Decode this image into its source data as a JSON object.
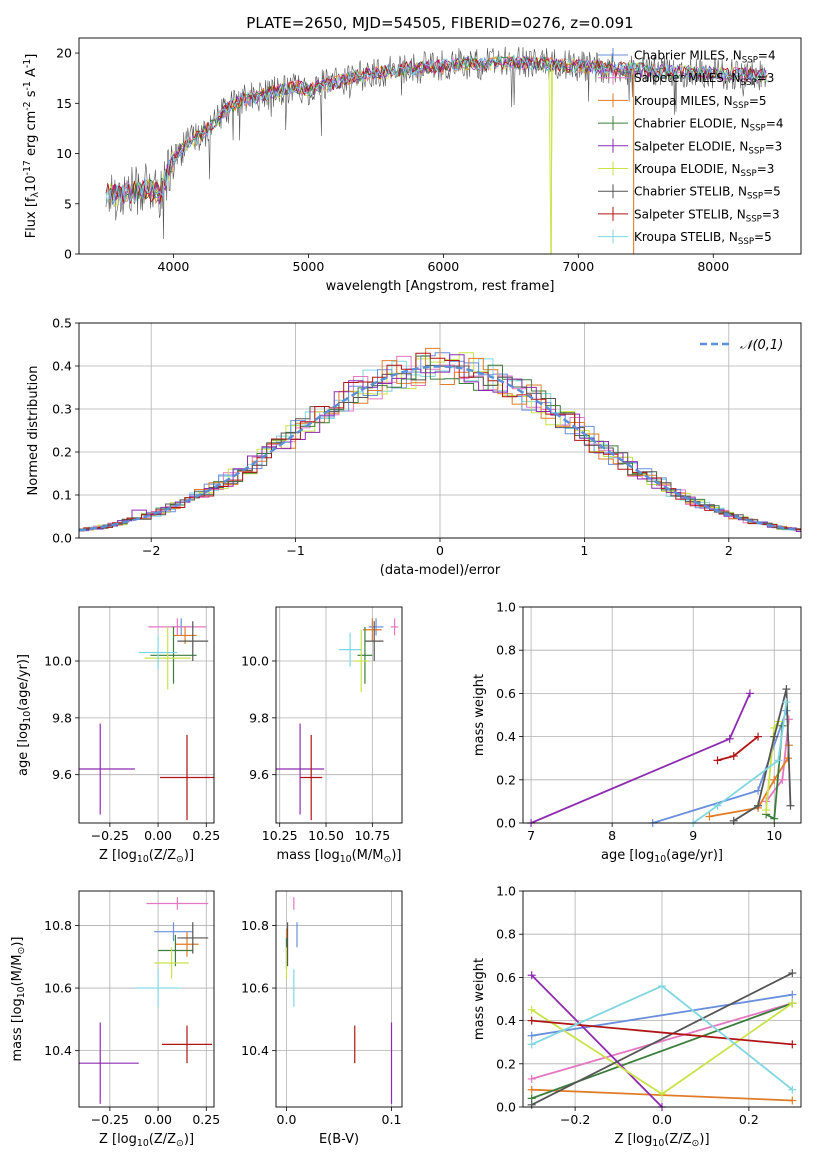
{
  "figure": {
    "title": "PLATE=2650, MJD=54505, FIBERID=0276, z=0.091"
  },
  "colors": {
    "chabrier_miles": "#6a8fdc",
    "salpeter_miles": "#e377c2",
    "kroupa_miles": "#e07c28",
    "chabrier_elodie": "#3c7d3c",
    "salpeter_elodie": "#8e2bb0",
    "kroupa_elodie": "#c9e34a",
    "chabrier_stelib": "#555555",
    "salpeter_stelib": "#b01515",
    "kroupa_stelib": "#80d6e0",
    "normal": "#5b8fd6",
    "grid": "#b0b0b0"
  },
  "chart_data": [
    {
      "id": "spectrum",
      "type": "line",
      "title": "PLATE=2650, MJD=54505, FIBERID=0276, z=0.091",
      "xlabel": "wavelength [Angstrom, rest frame]",
      "ylabel": "Flux [f$_\\lambda$10$^{-17}$ erg cm$^{-2}$ s$^{-1}$ A$^{-1}$]",
      "xlim": [
        3300,
        8650
      ],
      "ylim": [
        0,
        21.5
      ],
      "xticks": [
        4000,
        5000,
        6000,
        7000,
        8000
      ],
      "yticks": [
        0,
        5,
        10,
        15,
        20
      ],
      "grid": false,
      "legend_position": "top-right",
      "legend": [
        {
          "label": "Chabrier MILES, N$_{SSP}$=4",
          "color": "#6a8fdc"
        },
        {
          "label": "Salpeter MILES, N$_{SSP}$=3",
          "color": "#e377c2"
        },
        {
          "label": "Kroupa MILES, N$_{SSP}$=5",
          "color": "#e07c28"
        },
        {
          "label": "Chabrier ELODIE, N$_{SSP}$=4",
          "color": "#3c7d3c"
        },
        {
          "label": "Salpeter ELODIE, N$_{SSP}$=3",
          "color": "#8e2bb0"
        },
        {
          "label": "Kroupa ELODIE, N$_{SSP}$=3",
          "color": "#c9e34a"
        },
        {
          "label": "Chabrier STELIB, N$_{SSP}$=5",
          "color": "#555555"
        },
        {
          "label": "Salpeter STELIB, N$_{SSP}$=3",
          "color": "#b01515"
        },
        {
          "label": "Kroupa STELIB, N$_{SSP}$=5",
          "color": "#80d6e0"
        }
      ],
      "continuum": {
        "x": [
          3500,
          3600,
          3700,
          3800,
          3900,
          4000,
          4100,
          4200,
          4300,
          4400,
          4500,
          4600,
          4700,
          4800,
          4900,
          5000,
          5100,
          5200,
          5300,
          5400,
          5500,
          5600,
          5700,
          5800,
          5900,
          6000,
          6100,
          6200,
          6300,
          6400,
          6500,
          6600,
          6700,
          6800,
          6900,
          7000,
          7100,
          7200,
          7300,
          7400,
          7500,
          7600,
          7700,
          7800,
          7900,
          8000,
          8100,
          8200,
          8300,
          8400
        ],
        "y": [
          6.0,
          5.8,
          6.2,
          6.5,
          6.0,
          9.5,
          11.0,
          11.8,
          13.0,
          14.5,
          15.3,
          15.6,
          15.9,
          16.3,
          16.7,
          16.3,
          16.8,
          17.0,
          17.5,
          17.8,
          18.0,
          18.2,
          18.4,
          18.5,
          18.6,
          18.7,
          18.9,
          19.0,
          18.9,
          19.0,
          19.1,
          19.0,
          19.0,
          18.9,
          18.8,
          18.7,
          18.6,
          18.5,
          18.4,
          18.4,
          18.3,
          18.2,
          18.2,
          18.1,
          18.0,
          18.0,
          17.9,
          17.9,
          17.8,
          17.8
        ]
      },
      "spikes": [
        {
          "x": 6800,
          "y": 0.0
        },
        {
          "x": 7410,
          "y": 0.0
        }
      ]
    },
    {
      "id": "residuals",
      "type": "line",
      "xlabel": "(data-model)/error",
      "ylabel": "Normed distribution",
      "xlim": [
        -2.5,
        2.5
      ],
      "ylim": [
        0,
        0.5
      ],
      "xticks": [
        -2,
        -1,
        0,
        1,
        2
      ],
      "yticks": [
        0.0,
        0.1,
        0.2,
        0.3,
        0.4,
        0.5
      ],
      "grid": true,
      "legend_position": "top-right",
      "legend": [
        {
          "label": "$\\mathcal{N}(0,1)$",
          "color": "#5b8fd6"
        }
      ],
      "normal": {
        "mean": 0,
        "sigma": 1
      }
    },
    {
      "id": "age_vs_Z",
      "type": "scatter",
      "xlabel": "Z [log$_{10}$(Z/Z$_\\odot$)]",
      "ylabel": "age  [log$_{10}$(age/yr)]",
      "xlim": [
        -0.41,
        0.29
      ],
      "ylim": [
        9.43,
        10.19
      ],
      "xticks": [
        -0.25,
        0.0,
        0.25
      ],
      "xtick_labels": [
        "−0.25",
        "0.00",
        "0.25"
      ],
      "yticks": [
        9.6,
        9.8,
        10.0
      ],
      "grid": true,
      "points": [
        {
          "model": "chabrier_miles",
          "x": 0.12,
          "y": 10.12,
          "xerr": 0.05,
          "yerr": 0.03
        },
        {
          "model": "salpeter_miles",
          "x": 0.1,
          "y": 10.12,
          "xerr": 0.15,
          "yerr": 0.03
        },
        {
          "model": "kroupa_miles",
          "x": 0.14,
          "y": 10.09,
          "xerr": 0.06,
          "yerr": 0.03
        },
        {
          "model": "chabrier_elodie",
          "x": 0.08,
          "y": 10.02,
          "xerr": 0.12,
          "yerr": 0.1
        },
        {
          "model": "salpeter_elodie",
          "x": -0.3,
          "y": 9.62,
          "xerr": 0.18,
          "yerr": 0.16
        },
        {
          "model": "kroupa_elodie",
          "x": 0.05,
          "y": 10.01,
          "xerr": 0.12,
          "yerr": 0.11
        },
        {
          "model": "chabrier_stelib",
          "x": 0.18,
          "y": 10.07,
          "xerr": 0.08,
          "yerr": 0.07
        },
        {
          "model": "salpeter_stelib",
          "x": 0.15,
          "y": 9.59,
          "xerr": 0.14,
          "yerr": 0.15
        },
        {
          "model": "kroupa_stelib",
          "x": 0.0,
          "y": 10.03,
          "xerr": 0.1,
          "yerr": 0.06
        }
      ]
    },
    {
      "id": "age_vs_mass",
      "type": "scatter",
      "xlabel": "mass [log$_{10}$(M/M$_\\odot$)]",
      "ylabel": "",
      "xlim": [
        10.23,
        10.91
      ],
      "ylim": [
        9.43,
        10.19
      ],
      "xticks": [
        10.25,
        10.5,
        10.75
      ],
      "xtick_labels": [
        "10.25",
        "10.50",
        "10.75"
      ],
      "yticks": [
        9.6,
        9.8,
        10.0
      ],
      "grid": true,
      "points": [
        {
          "model": "chabrier_miles",
          "x": 10.77,
          "y": 10.12,
          "xerr": 0.04,
          "yerr": 0.03
        },
        {
          "model": "salpeter_miles",
          "x": 10.87,
          "y": 10.12,
          "xerr": 0.02,
          "yerr": 0.03
        },
        {
          "model": "kroupa_miles",
          "x": 10.75,
          "y": 10.11,
          "xerr": 0.05,
          "yerr": 0.04
        },
        {
          "model": "chabrier_elodie",
          "x": 10.71,
          "y": 10.02,
          "xerr": 0.04,
          "yerr": 0.1
        },
        {
          "model": "salpeter_elodie",
          "x": 10.36,
          "y": 9.62,
          "xerr": 0.13,
          "yerr": 0.16
        },
        {
          "model": "kroupa_elodie",
          "x": 10.69,
          "y": 10.0,
          "xerr": 0.04,
          "yerr": 0.11
        },
        {
          "model": "chabrier_stelib",
          "x": 10.76,
          "y": 10.07,
          "xerr": 0.05,
          "yerr": 0.07
        },
        {
          "model": "salpeter_stelib",
          "x": 10.42,
          "y": 9.59,
          "xerr": 0.06,
          "yerr": 0.15
        },
        {
          "model": "kroupa_stelib",
          "x": 10.63,
          "y": 10.04,
          "xerr": 0.06,
          "yerr": 0.06
        }
      ]
    },
    {
      "id": "weight_vs_age",
      "type": "line",
      "xlabel": "age  [log$_{10}$(age/yr)]",
      "ylabel": "mass weight",
      "xlim": [
        6.9,
        10.33
      ],
      "ylim": [
        0,
        1.0
      ],
      "xticks": [
        7,
        8,
        9,
        10
      ],
      "yticks": [
        0.0,
        0.2,
        0.4,
        0.6,
        0.8,
        1.0
      ],
      "grid": true,
      "series": [
        {
          "model": "chabrier_miles",
          "x": [
            8.5,
            9.8,
            10.15
          ],
          "y": [
            0.0,
            0.15,
            0.52
          ]
        },
        {
          "model": "salpeter_miles",
          "x": [
            9.9,
            10.1,
            10.18
          ],
          "y": [
            0.1,
            0.2,
            0.48
          ]
        },
        {
          "model": "kroupa_miles",
          "x": [
            9.2,
            9.8,
            10.0,
            10.17,
            10.18
          ],
          "y": [
            0.03,
            0.07,
            0.2,
            0.3,
            0.36
          ]
        },
        {
          "model": "chabrier_elodie",
          "x": [
            9.9,
            10.0,
            10.1
          ],
          "y": [
            0.04,
            0.02,
            0.45
          ]
        },
        {
          "model": "salpeter_elodie",
          "x": [
            7.0,
            9.45,
            9.7
          ],
          "y": [
            0.0,
            0.39,
            0.6
          ]
        },
        {
          "model": "kroupa_elodie",
          "x": [
            9.9,
            10.0,
            10.05
          ],
          "y": [
            0.06,
            0.44,
            0.47
          ]
        },
        {
          "model": "chabrier_stelib",
          "x": [
            9.5,
            9.8,
            10.0,
            10.15,
            10.2
          ],
          "y": [
            0.01,
            0.08,
            0.4,
            0.62,
            0.08
          ]
        },
        {
          "model": "salpeter_stelib",
          "x": [
            9.3,
            9.5,
            9.8
          ],
          "y": [
            0.29,
            0.31,
            0.4
          ]
        },
        {
          "model": "kroupa_stelib",
          "x": [
            9.0,
            9.3,
            10.05,
            10.15
          ],
          "y": [
            0.0,
            0.08,
            0.29,
            0.56
          ]
        }
      ]
    },
    {
      "id": "mass_vs_Z",
      "type": "scatter",
      "xlabel": "Z [log$_{10}$(Z/Z$_\\odot$)]",
      "ylabel": "mass [log$_{10}$(M/M$_\\odot$)]",
      "xlim": [
        -0.41,
        0.29
      ],
      "ylim": [
        10.22,
        10.91
      ],
      "xticks": [
        -0.25,
        0.0,
        0.25
      ],
      "xtick_labels": [
        "−0.25",
        "0.00",
        "0.25"
      ],
      "yticks": [
        10.4,
        10.6,
        10.8
      ],
      "grid": true,
      "points": [
        {
          "model": "chabrier_miles",
          "x": 0.08,
          "y": 10.78,
          "xerr": 0.1,
          "yerr": 0.03
        },
        {
          "model": "salpeter_miles",
          "x": 0.1,
          "y": 10.87,
          "xerr": 0.16,
          "yerr": 0.02
        },
        {
          "model": "kroupa_miles",
          "x": 0.15,
          "y": 10.74,
          "xerr": 0.06,
          "yerr": 0.04
        },
        {
          "model": "chabrier_elodie",
          "x": 0.09,
          "y": 10.72,
          "xerr": 0.09,
          "yerr": 0.05
        },
        {
          "model": "salpeter_elodie",
          "x": -0.3,
          "y": 10.36,
          "xerr": 0.2,
          "yerr": 0.13
        },
        {
          "model": "kroupa_elodie",
          "x": 0.07,
          "y": 10.68,
          "xerr": 0.09,
          "yerr": 0.05
        },
        {
          "model": "chabrier_stelib",
          "x": 0.18,
          "y": 10.76,
          "xerr": 0.08,
          "yerr": 0.05
        },
        {
          "model": "salpeter_stelib",
          "x": 0.15,
          "y": 10.42,
          "xerr": 0.13,
          "yerr": 0.06
        },
        {
          "model": "kroupa_stelib",
          "x": 0.0,
          "y": 10.6,
          "xerr": 0.12,
          "yerr": 0.06
        }
      ]
    },
    {
      "id": "mass_vs_ebv",
      "type": "scatter",
      "xlabel": "E(B-V)",
      "ylabel": "",
      "xlim": [
        -0.01,
        0.11
      ],
      "ylim": [
        10.22,
        10.91
      ],
      "xticks": [
        0.0,
        0.1
      ],
      "xtick_labels": [
        "0.0",
        "0.1"
      ],
      "yticks": [
        10.4,
        10.6,
        10.8
      ],
      "grid": true,
      "points": [
        {
          "model": "chabrier_miles",
          "x": 0.01,
          "y": 10.77,
          "xerr": 0,
          "yerr": 0.04
        },
        {
          "model": "salpeter_miles",
          "x": 0.007,
          "y": 10.87,
          "xerr": 0,
          "yerr": 0.02
        },
        {
          "model": "kroupa_miles",
          "x": 0.0,
          "y": 10.75,
          "xerr": 0,
          "yerr": 0.04
        },
        {
          "model": "chabrier_elodie",
          "x": 0.0,
          "y": 10.71,
          "xerr": 0,
          "yerr": 0.05
        },
        {
          "model": "salpeter_elodie",
          "x": 0.1,
          "y": 10.36,
          "xerr": 0,
          "yerr": 0.13
        },
        {
          "model": "kroupa_elodie",
          "x": 0.0,
          "y": 10.68,
          "xerr": 0,
          "yerr": 0.05
        },
        {
          "model": "chabrier_stelib",
          "x": 0.001,
          "y": 10.74,
          "xerr": 0,
          "yerr": 0.07
        },
        {
          "model": "salpeter_stelib",
          "x": 0.065,
          "y": 10.42,
          "xerr": 0,
          "yerr": 0.06
        },
        {
          "model": "kroupa_stelib",
          "x": 0.007,
          "y": 10.6,
          "xerr": 0,
          "yerr": 0.06
        }
      ]
    },
    {
      "id": "weight_vs_Z",
      "type": "line",
      "xlabel": "Z [log$_{10}$(Z/Z$_\\odot$)]",
      "ylabel": "mass weight",
      "xlim": [
        -0.32,
        0.32
      ],
      "ylim": [
        0,
        1.0
      ],
      "xticks": [
        -0.2,
        0.0,
        0.2
      ],
      "xtick_labels": [
        "−0.2",
        "0.0",
        "0.2"
      ],
      "yticks": [
        0.0,
        0.2,
        0.4,
        0.6,
        0.8,
        1.0
      ],
      "grid": true,
      "series": [
        {
          "model": "chabrier_miles",
          "x": [
            -0.3,
            0.3
          ],
          "y": [
            0.33,
            0.52
          ]
        },
        {
          "model": "salpeter_miles",
          "x": [
            -0.3,
            0.3
          ],
          "y": [
            0.13,
            0.48
          ]
        },
        {
          "model": "kroupa_miles",
          "x": [
            -0.3,
            0.3
          ],
          "y": [
            0.08,
            0.03
          ]
        },
        {
          "model": "chabrier_elodie",
          "x": [
            -0.3,
            0.3
          ],
          "y": [
            0.04,
            0.48
          ]
        },
        {
          "model": "salpeter_elodie",
          "x": [
            -0.3,
            0.0
          ],
          "y": [
            0.61,
            0.0
          ]
        },
        {
          "model": "kroupa_elodie",
          "x": [
            -0.3,
            0.0,
            0.3
          ],
          "y": [
            0.45,
            0.06,
            0.48
          ]
        },
        {
          "model": "chabrier_stelib",
          "x": [
            -0.3,
            0.3
          ],
          "y": [
            0.01,
            0.62
          ]
        },
        {
          "model": "salpeter_stelib",
          "x": [
            -0.3,
            0.3
          ],
          "y": [
            0.4,
            0.29
          ]
        },
        {
          "model": "kroupa_stelib",
          "x": [
            -0.3,
            0.0,
            0.3
          ],
          "y": [
            0.29,
            0.56,
            0.08
          ]
        }
      ]
    }
  ]
}
